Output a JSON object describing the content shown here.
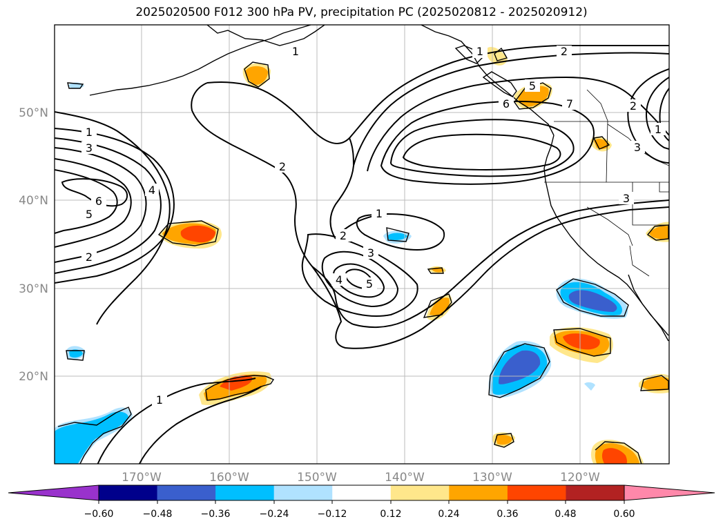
{
  "title": "2025020500 F012 300 hPa PV, precipitation PC (2025020812 - 2025020912)",
  "lat_labels": [
    "50°N",
    "40°N",
    "30°N",
    "20°N"
  ],
  "lon_labels": [
    "170°W",
    "160°W",
    "150°W",
    "140°W",
    "130°W",
    "120°W"
  ],
  "colorbar": {
    "ticks": [
      "−0.60",
      "−0.48",
      "−0.36",
      "−0.24",
      "−0.12",
      "0.12",
      "0.24",
      "0.36",
      "0.48",
      "0.60"
    ],
    "colors": {
      "under": "#9932cc",
      "bins": [
        "#00008b",
        "#3a5fcd",
        "#00bfff",
        "#b0e2ff",
        "#ffffff",
        "#ffe78b",
        "#ffa500",
        "#ff4500",
        "#b22222"
      ],
      "over": "#ff88aa"
    }
  },
  "pv_labels": [
    "1",
    "3",
    "6",
    "5",
    "2",
    "4",
    "2",
    "1",
    "2",
    "3",
    "4",
    "5",
    "1",
    "2",
    "5",
    "6",
    "7",
    "2",
    "1",
    "3",
    "3",
    "1",
    "1"
  ]
}
